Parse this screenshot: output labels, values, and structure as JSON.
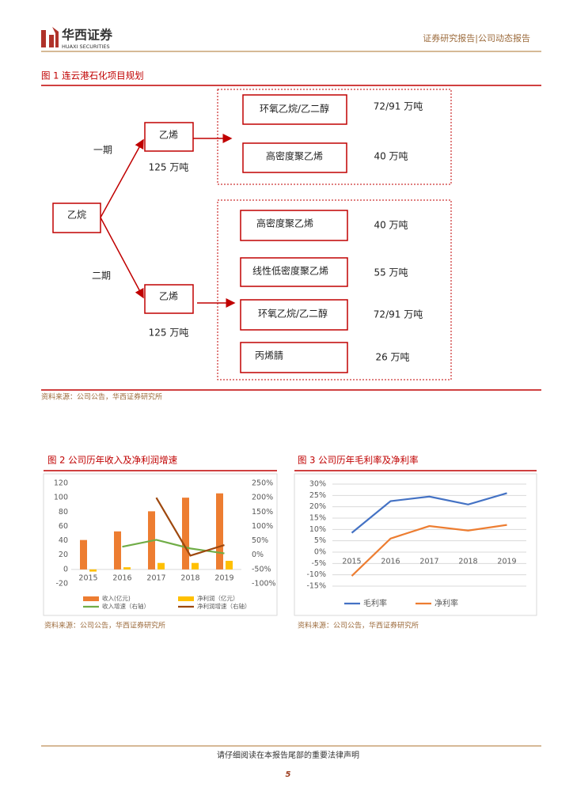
{
  "header": {
    "brand": "华西证券",
    "brand_en": "HUAXI SECURITIES",
    "report_type": "证券研究报告|公司动态报告"
  },
  "figure_1": {
    "title": "图 1   连云港石化项目规划",
    "feedstock": "乙烷",
    "phases": [
      {
        "name": "一期",
        "product": "乙烯",
        "capacity": "125 万吨",
        "outputs": [
          {
            "name": "环氧乙烷/乙二醇",
            "capacity": "72/91 万吨"
          },
          {
            "name": "高密度聚乙烯",
            "capacity": "40 万吨"
          }
        ]
      },
      {
        "name": "二期",
        "product": "乙烯",
        "capacity": "125 万吨",
        "outputs": [
          {
            "name": "高密度聚乙烯",
            "capacity": "40 万吨"
          },
          {
            "name": "线性低密度聚乙烯",
            "capacity": "55 万吨"
          },
          {
            "name": "环氧乙烷/乙二醇",
            "capacity": "72/91 万吨"
          },
          {
            "name": "丙烯腈",
            "capacity": "26 万吨"
          }
        ]
      }
    ],
    "source": "资料来源：公司公告，华西证券研究所"
  },
  "chart_data": [
    {
      "type": "bar",
      "title": "图 2   公司历年收入及净利润增速",
      "categories": [
        "2015",
        "2016",
        "2017",
        "2018",
        "2019"
      ],
      "series": [
        {
          "name": "收入(亿元)",
          "color": "#ED7D31",
          "values": [
            41,
            53,
            81,
            100,
            106
          ]
        },
        {
          "name": "净利润（亿元）",
          "color": "#FFC000",
          "values": [
            -3,
            3,
            9,
            9,
            12
          ]
        },
        {
          "name": "收入增速（右轴）",
          "color": "#70AD47",
          "type": "line",
          "axis": "y2",
          "values": [
            null,
            29,
            53,
            23,
            6
          ]
        },
        {
          "name": "净利润增速（右轴）",
          "color": "#9E480E",
          "type": "line",
          "axis": "y2",
          "values": [
            null,
            null,
            200,
            -2,
            35
          ]
        }
      ],
      "ylim": [
        -20,
        120
      ],
      "yticks": [
        -20,
        0,
        20,
        40,
        60,
        80,
        100,
        120
      ],
      "y2lim": [
        -100,
        250
      ],
      "y2ticks": [
        {
          "value": -100,
          "label": "-100%"
        },
        {
          "value": -50,
          "label": "-50%"
        },
        {
          "value": 0,
          "label": "0%"
        },
        {
          "value": 50,
          "label": "50%"
        },
        {
          "value": 100,
          "label": "100%"
        },
        {
          "value": 150,
          "label": "150%"
        },
        {
          "value": 200,
          "label": "200%"
        },
        {
          "value": 250,
          "label": "250%"
        }
      ],
      "grid": false,
      "source": "资料来源：公司公告，华西证券研究所"
    },
    {
      "type": "line",
      "title": "图 3   公司历年毛利率及净利率",
      "categories": [
        "2015",
        "2016",
        "2017",
        "2018",
        "2019"
      ],
      "series": [
        {
          "name": "毛利率",
          "color": "#4472C4",
          "values": [
            8.5,
            22.5,
            24.5,
            21,
            26
          ]
        },
        {
          "name": "净利率",
          "color": "#ED7D31",
          "values": [
            -10.5,
            6,
            11.5,
            9.5,
            12
          ]
        }
      ],
      "ylim": [
        -15,
        30
      ],
      "yticks": [
        {
          "value": -15,
          "label": "-15%"
        },
        {
          "value": -10,
          "label": "-10%"
        },
        {
          "value": -5,
          "label": "-5%"
        },
        {
          "value": 0,
          "label": "0%"
        },
        {
          "value": 5,
          "label": "5%"
        },
        {
          "value": 10,
          "label": "10%"
        },
        {
          "value": 15,
          "label": "15%"
        },
        {
          "value": 20,
          "label": "20%"
        },
        {
          "value": 25,
          "label": "25%"
        },
        {
          "value": 30,
          "label": "30%"
        }
      ],
      "grid": true,
      "source": "资料来源：公司公告，华西证券研究所"
    }
  ],
  "footer": {
    "notice": "请仔细阅读在本报告尾部的重要法律声明",
    "page": "5"
  }
}
